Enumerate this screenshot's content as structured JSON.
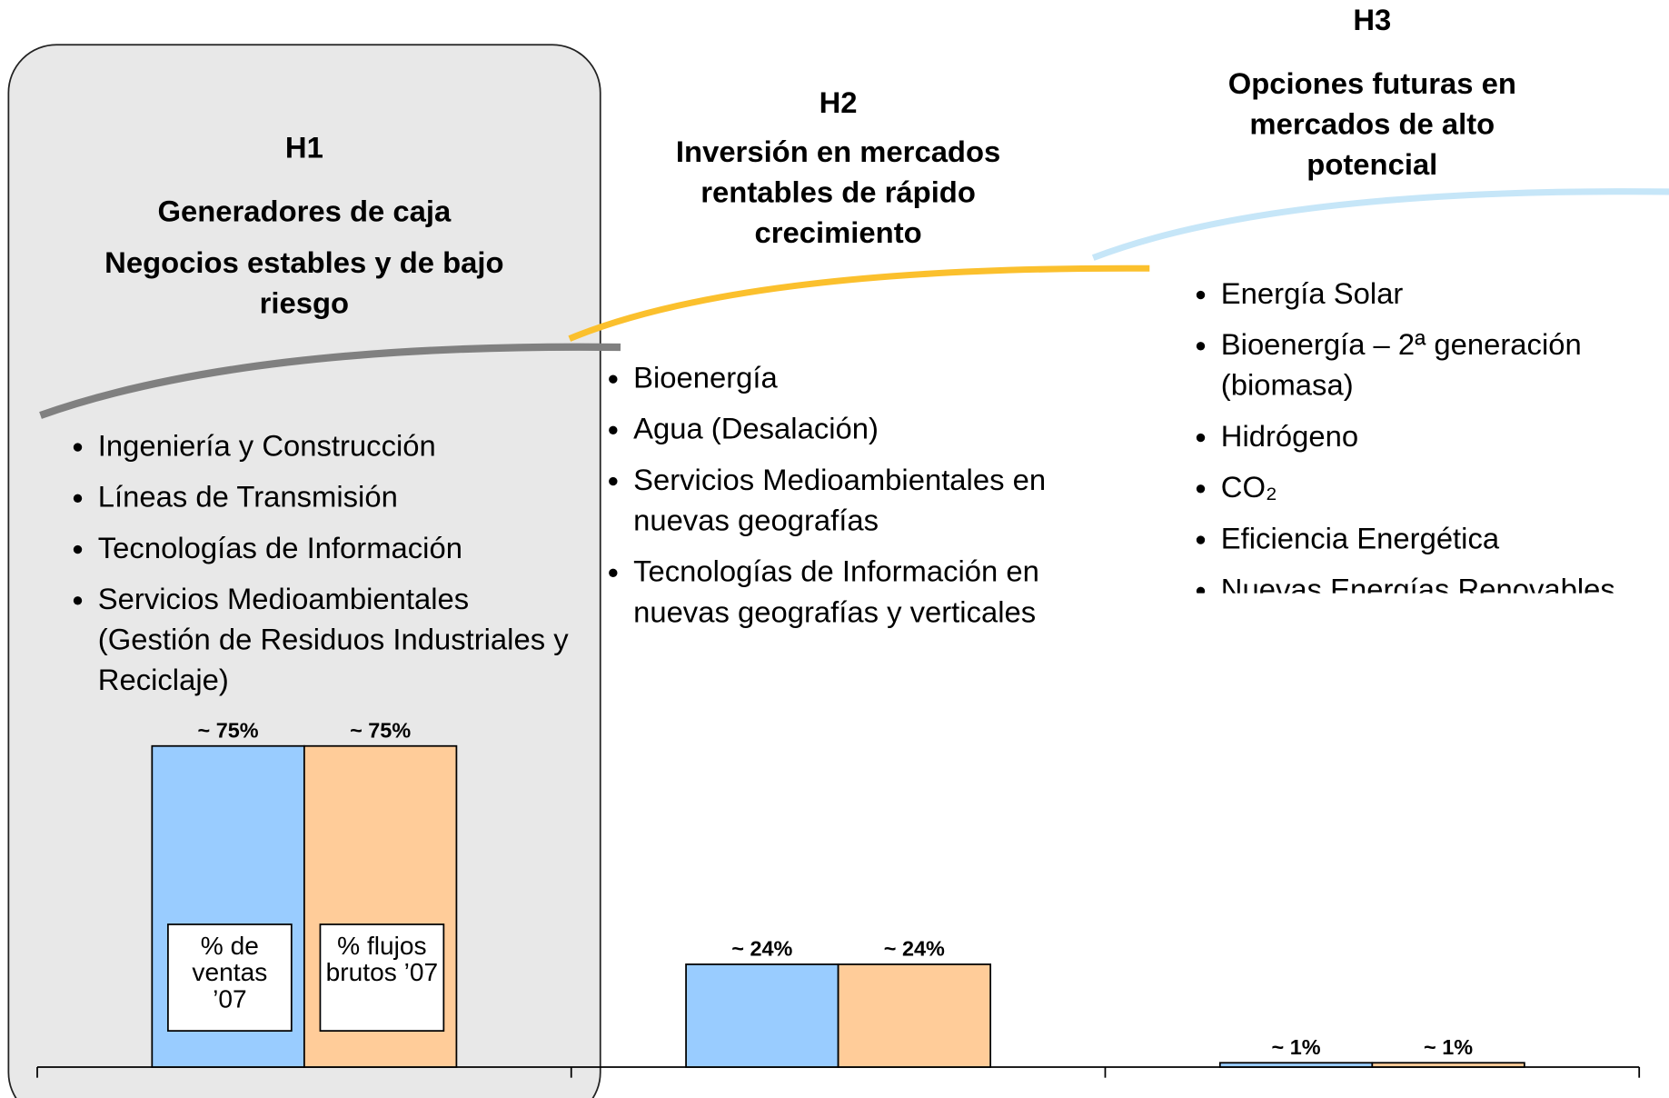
{
  "chart_data": {
    "type": "bar",
    "categories": [
      "H1",
      "H2",
      "H3"
    ],
    "groups": [
      {
        "title": "Generadores de caja",
        "subtitle": "Negocios estables y de bajo riesgo",
        "items": [
          "Ingeniería y Construcción",
          "Líneas de Transmisión",
          "Tecnologías de Información",
          "Servicios Medioambientales (Gestión de Residuos Industriales y Reciclaje)"
        ]
      },
      {
        "title": "Inversión en mercados rentables de rápido crecimiento",
        "items": [
          "Bioenergía",
          "Agua (Desalación)",
          "Servicios Medioambientales en nuevas geografías",
          "Tecnologías de Información en nuevas geografías y verticales"
        ]
      },
      {
        "title": "Opciones futuras en mercados de alto potencial",
        "items": [
          "Energía Solar",
          "Bioenergía – 2ª generación (biomasa)",
          "Hidrógeno",
          "CO₂",
          "Eficiencia Energética",
          "Nuevas Energías Renovables"
        ]
      }
    ],
    "series": [
      {
        "name": "% de ventas ’07",
        "color": "#99ccff",
        "values": [
          75,
          24,
          1
        ],
        "value_labels": [
          "~ 75%",
          "~ 24%",
          "~ 1%"
        ]
      },
      {
        "name": "% flujos brutos ’07",
        "color": "#ffcc99",
        "values": [
          75,
          24,
          1
        ],
        "value_labels": [
          "~ 75%",
          "~ 24%",
          "~ 1%"
        ]
      }
    ]
  }
}
